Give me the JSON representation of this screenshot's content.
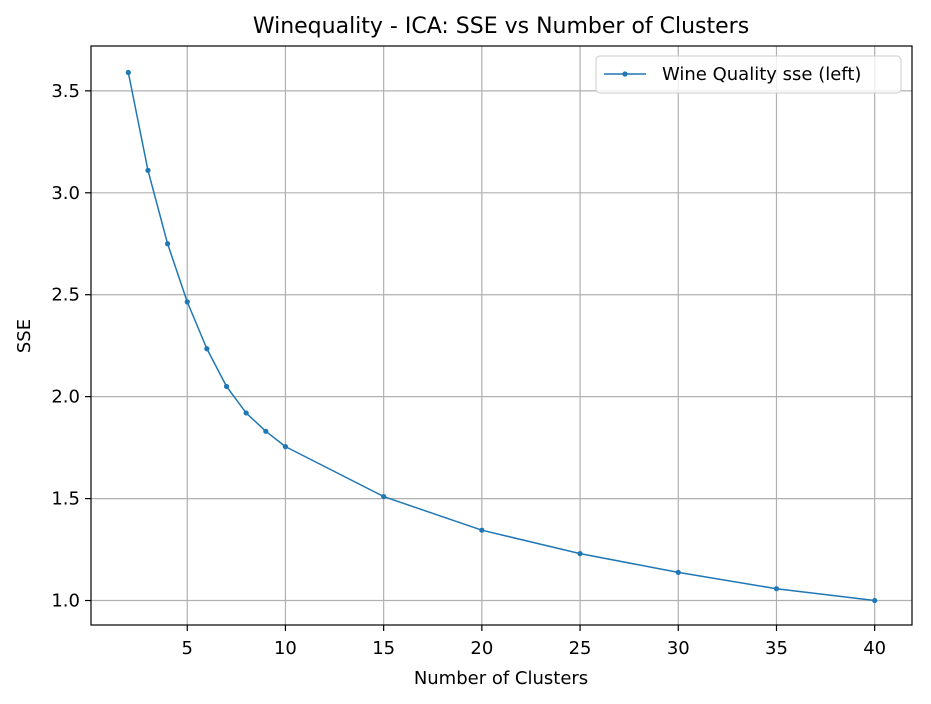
{
  "chart_data": {
    "type": "line",
    "title": "Winequality - ICA: SSE vs Number of Clusters",
    "xlabel": "Number of Clusters",
    "ylabel": "SSE",
    "xlim": [
      0.1,
      41.9
    ],
    "ylim": [
      0.88,
      3.72
    ],
    "xticks": [
      5,
      10,
      15,
      20,
      25,
      30,
      35,
      40
    ],
    "yticks": [
      1.0,
      1.5,
      2.0,
      2.5,
      3.0,
      3.5
    ],
    "ytick_labels": [
      "1.0",
      "1.5",
      "2.0",
      "2.5",
      "3.0",
      "3.5"
    ],
    "grid": true,
    "legend_position": "upper right",
    "series": [
      {
        "name": "Wine Quality sse (left)",
        "color": "#1f77b4",
        "x": [
          2,
          3,
          4,
          5,
          6,
          7,
          8,
          9,
          10,
          15,
          20,
          25,
          30,
          35,
          40
        ],
        "y": [
          3.59,
          3.11,
          2.75,
          2.465,
          2.235,
          2.05,
          1.92,
          1.83,
          1.755,
          1.51,
          1.345,
          1.23,
          1.138,
          1.058,
          1.0
        ]
      }
    ]
  }
}
